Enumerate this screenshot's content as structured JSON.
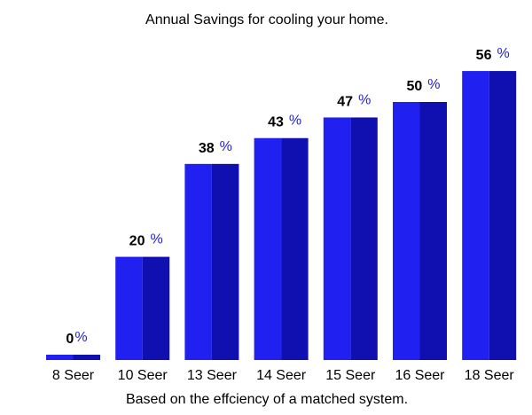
{
  "chart_data": {
    "type": "bar",
    "title": "Annual Savings for cooling your home.",
    "xlabel": "Based on the effciency of a matched system.",
    "ylabel": "",
    "categories": [
      "8 Seer",
      "10 Seer",
      "13 Seer",
      "14 Seer",
      "15 Seer",
      "16 Seer",
      "18 Seer"
    ],
    "values": [
      0,
      20,
      38,
      43,
      47,
      50,
      56
    ],
    "value_suffix": "%",
    "ylim": [
      0,
      60
    ],
    "grid": false,
    "legend": "none",
    "colors": {
      "bar_light": "#2020f0",
      "bar_dark": "#1010b0",
      "percent_sign": "#2222cc",
      "text": "#000000"
    }
  }
}
